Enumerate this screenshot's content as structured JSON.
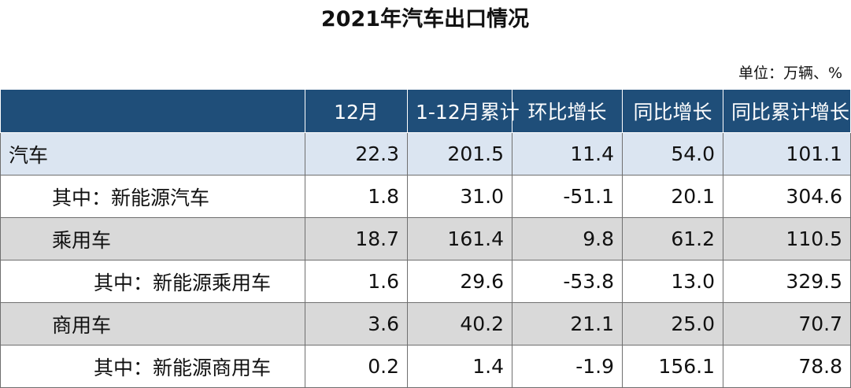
{
  "header": {
    "title": "2021年汽车出口情况",
    "unit": "单位：万辆、%"
  },
  "table": {
    "columns": [
      "12月",
      "1-12月累计",
      "环比增长",
      "同比增长",
      "同比累计增长"
    ],
    "rows": [
      {
        "label": "汽车",
        "cells": [
          "22.3",
          "201.5",
          "11.4",
          "54.0",
          "101.1"
        ]
      },
      {
        "label": "其中：新能源汽车",
        "cells": [
          "1.8",
          "31.0",
          "-51.1",
          "20.1",
          "304.6"
        ]
      },
      {
        "label": "乘用车",
        "cells": [
          "18.7",
          "161.4",
          "9.8",
          "61.2",
          "110.5"
        ]
      },
      {
        "label": "其中：新能源乘用车",
        "cells": [
          "1.6",
          "29.6",
          "-53.8",
          "13.0",
          "329.5"
        ]
      },
      {
        "label": "商用车",
        "cells": [
          "3.6",
          "40.2",
          "21.1",
          "25.0",
          "70.7"
        ]
      },
      {
        "label": "其中：新能源商用车",
        "cells": [
          "0.2",
          "1.4",
          "-1.9",
          "156.1",
          "78.8"
        ]
      }
    ]
  }
}
